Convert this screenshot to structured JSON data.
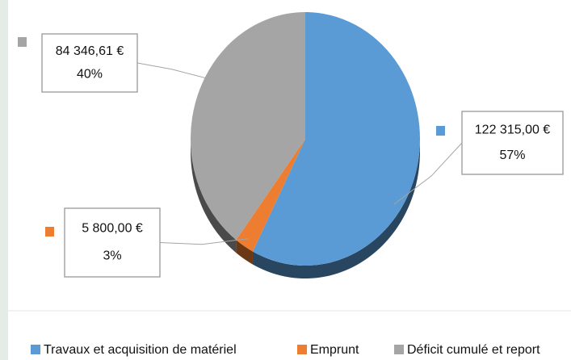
{
  "chart_data": {
    "type": "pie",
    "categories": [
      "Travaux et acquisition de matériel",
      "Emprunt",
      "Déficit cumulé et report"
    ],
    "values": [
      122315.0,
      5800.0,
      84346.61
    ],
    "value_labels": [
      "122 315,00 €",
      "5 800,00 €",
      "84 346,61 €"
    ],
    "percentages": [
      57,
      3,
      40
    ],
    "percentage_labels": [
      "57%",
      "3%",
      "40%"
    ],
    "colors": [
      "#5b9bd5",
      "#ed7d31",
      "#a5a5a5"
    ],
    "legend": "bottom"
  }
}
